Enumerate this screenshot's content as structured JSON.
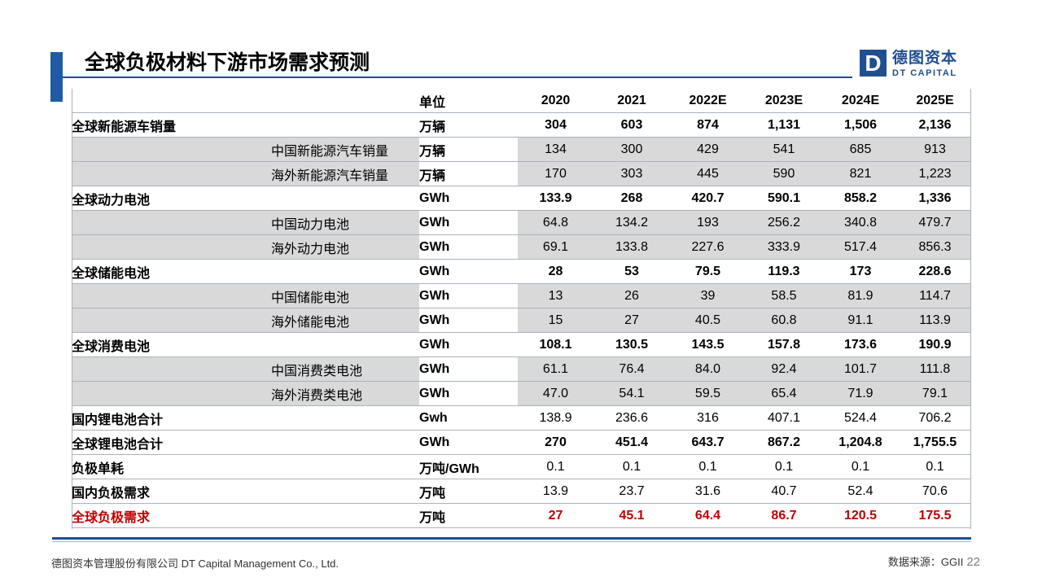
{
  "title": "全球负极材料下游市场需求预测",
  "logo": {
    "mark": "D",
    "cn": "德图资本",
    "en": "DT CAPITAL"
  },
  "table": {
    "header": {
      "unit": "单位",
      "years": [
        "2020",
        "2021",
        "2022E",
        "2023E",
        "2024E",
        "2025E"
      ]
    },
    "rows": [
      {
        "label": "全球新能源车销量",
        "sub": "",
        "unit": "万辆",
        "values": [
          "304",
          "603",
          "874",
          "1,131",
          "1,506",
          "2,136"
        ]
      },
      {
        "label": "",
        "sub": "中国新能源汽车销量",
        "unit": "万辆",
        "values": [
          "134",
          "300",
          "429",
          "541",
          "685",
          "913"
        ]
      },
      {
        "label": "",
        "sub": "海外新能源汽车销量",
        "unit": "万辆",
        "values": [
          "170",
          "303",
          "445",
          "590",
          "821",
          "1,223"
        ]
      },
      {
        "label": "全球动力电池",
        "sub": "",
        "unit": "GWh",
        "values": [
          "133.9",
          "268",
          "420.7",
          "590.1",
          "858.2",
          "1,336"
        ]
      },
      {
        "label": "",
        "sub": "中国动力电池",
        "unit": "GWh",
        "values": [
          "64.8",
          "134.2",
          "193",
          "256.2",
          "340.8",
          "479.7"
        ]
      },
      {
        "label": "",
        "sub": "海外动力电池",
        "unit": "GWh",
        "values": [
          "69.1",
          "133.8",
          "227.6",
          "333.9",
          "517.4",
          "856.3"
        ]
      },
      {
        "label": "全球储能电池",
        "sub": "",
        "unit": "GWh",
        "values": [
          "28",
          "53",
          "79.5",
          "119.3",
          "173",
          "228.6"
        ]
      },
      {
        "label": "",
        "sub": "中国储能电池",
        "unit": "GWh",
        "values": [
          "13",
          "26",
          "39",
          "58.5",
          "81.9",
          "114.7"
        ]
      },
      {
        "label": "",
        "sub": "海外储能电池",
        "unit": "GWh",
        "values": [
          "15",
          "27",
          "40.5",
          "60.8",
          "91.1",
          "113.9"
        ]
      },
      {
        "label": "全球消费电池",
        "sub": "",
        "unit": "GWh",
        "values": [
          "108.1",
          "130.5",
          "143.5",
          "157.8",
          "173.6",
          "190.9"
        ]
      },
      {
        "label": "",
        "sub": "中国消费类电池",
        "unit": "GWh",
        "values": [
          "61.1",
          "76.4",
          "84.0",
          "92.4",
          "101.7",
          "111.8"
        ]
      },
      {
        "label": "",
        "sub": "海外消费类电池",
        "unit": "GWh",
        "values": [
          "47.0",
          "54.1",
          "59.5",
          "65.4",
          "71.9",
          "79.1"
        ]
      },
      {
        "label": "国内锂电池合计",
        "sub": "",
        "unit": "Gwh",
        "values": [
          "138.9",
          "236.6",
          "316",
          "407.1",
          "524.4",
          "706.2"
        ]
      },
      {
        "label": "全球锂电池合计",
        "sub": "",
        "unit": "GWh",
        "values": [
          "270",
          "451.4",
          "643.7",
          "867.2",
          "1,204.8",
          "1,755.5"
        ]
      },
      {
        "label": "负极单耗",
        "sub": "",
        "unit": "万吨/GWh",
        "values": [
          "0.1",
          "0.1",
          "0.1",
          "0.1",
          "0.1",
          "0.1"
        ]
      },
      {
        "label": "国内负极需求",
        "sub": "",
        "unit": "万吨",
        "values": [
          "13.9",
          "23.7",
          "31.6",
          "40.7",
          "52.4",
          "70.6"
        ]
      },
      {
        "label": "全球负极需求",
        "sub": "",
        "unit": "万吨",
        "values": [
          "27",
          "45.1",
          "64.4",
          "86.7",
          "120.5",
          "175.5"
        ]
      }
    ]
  },
  "footer": {
    "company": "德图资本管理股份有限公司  DT Capital  Management  Co., Ltd.",
    "source": "数据来源：GGII",
    "page": "22"
  }
}
